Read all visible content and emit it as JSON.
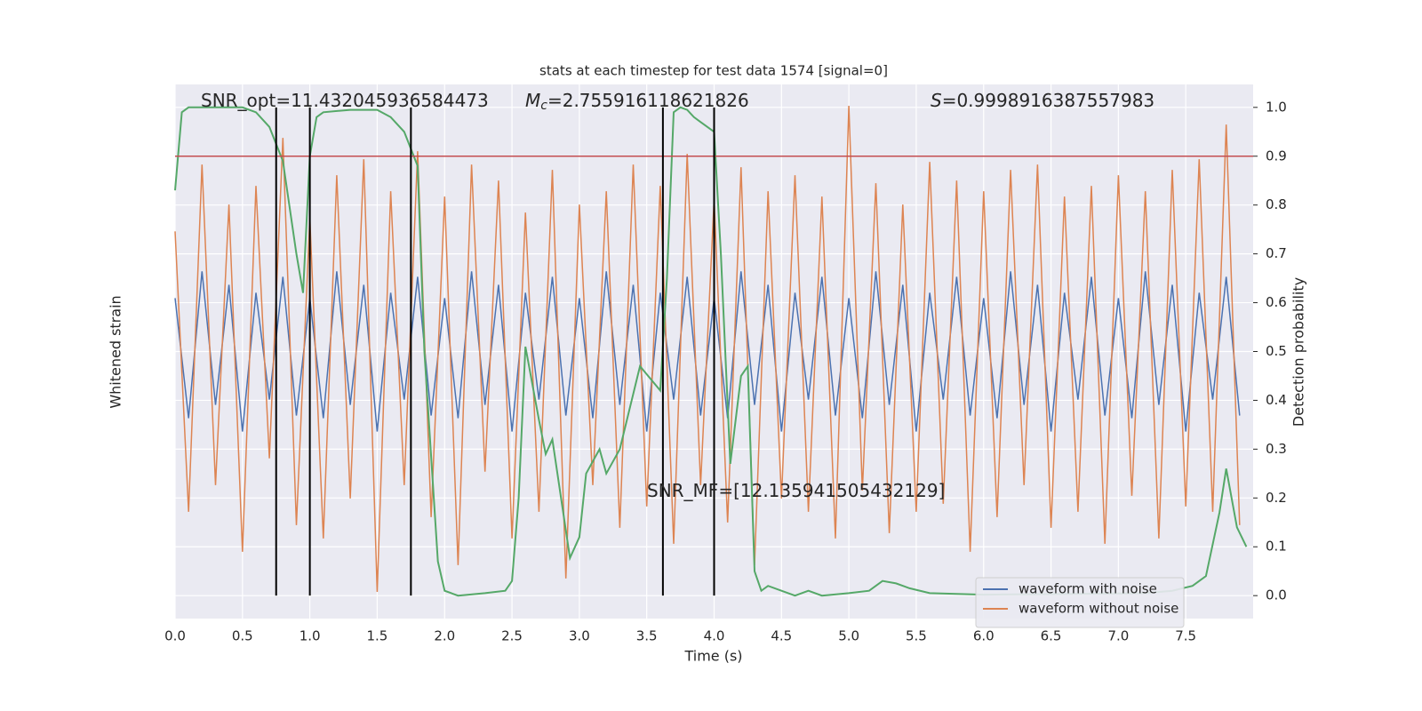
{
  "chart_data": {
    "type": "line",
    "title": "stats at each timestep for test data 1574 [signal=0]",
    "xlabel": "Time (s)",
    "ylabel": "Whitened strain",
    "y2label": "Detection probability",
    "xlim": [
      0,
      8.0
    ],
    "ylim": [
      -1,
      1
    ],
    "y2lim": [
      -0.047,
      1.047
    ],
    "xticks": [
      {
        "value": 0,
        "label": "0.0"
      },
      0.5,
      {
        "value": 1,
        "label": "1.0"
      },
      1.5,
      {
        "value": 2,
        "label": "2.0"
      },
      2.5,
      {
        "value": 3,
        "label": "3.0"
      },
      3.5,
      {
        "value": 4,
        "label": "4.0"
      },
      4.5,
      {
        "value": 5,
        "label": "5.0"
      },
      5.5,
      {
        "value": 6,
        "label": "6.0"
      },
      6.5,
      {
        "value": 7,
        "label": "7.0"
      },
      7.5
    ],
    "y2ticks": [
      {
        "value": 0,
        "label": "0.0"
      },
      0.1,
      0.2,
      0.3,
      0.4,
      0.5,
      0.6,
      0.7,
      0.8,
      0.9,
      {
        "value": 1,
        "label": "1.0"
      }
    ],
    "grid": true,
    "legend": "lower right",
    "x": [
      0.0,
      0.1,
      0.2,
      0.3,
      0.4,
      0.5,
      0.6,
      0.7,
      0.8,
      0.9,
      1.0,
      1.1,
      1.2,
      1.3,
      1.4,
      1.5,
      1.6,
      1.7,
      1.8,
      1.9,
      2.0,
      2.1,
      2.2,
      2.3,
      2.4,
      2.5,
      2.6,
      2.7,
      2.8,
      2.9,
      3.0,
      3.1,
      3.2,
      3.3,
      3.4,
      3.5,
      3.6,
      3.7,
      3.8,
      3.9,
      4.0,
      4.1,
      4.2,
      4.3,
      4.4,
      4.5,
      4.6,
      4.7,
      4.8,
      4.9,
      5.0,
      5.1,
      5.2,
      5.3,
      5.4,
      5.5,
      5.6,
      5.7,
      5.8,
      5.9,
      6.0,
      6.1,
      6.2,
      6.3,
      6.4,
      6.5,
      6.6,
      6.7,
      6.8,
      6.9,
      7.0,
      7.1,
      7.2,
      7.3,
      7.4,
      7.5,
      7.6,
      7.7,
      7.8,
      7.9
    ],
    "series": [
      {
        "name": "waveform with noise",
        "color": "#4c72b0",
        "values": [
          0.2,
          -0.25,
          0.3,
          -0.2,
          0.25,
          -0.3,
          0.22,
          -0.18,
          0.28,
          -0.24,
          0.2,
          -0.25,
          0.3,
          -0.2,
          0.25,
          -0.3,
          0.22,
          -0.18,
          0.28,
          -0.24,
          0.2,
          -0.25,
          0.3,
          -0.2,
          0.25,
          -0.3,
          0.22,
          -0.18,
          0.28,
          -0.24,
          0.2,
          -0.25,
          0.3,
          -0.2,
          0.25,
          -0.3,
          0.22,
          -0.18,
          0.28,
          -0.24,
          0.2,
          -0.25,
          0.3,
          -0.2,
          0.25,
          -0.3,
          0.22,
          -0.18,
          0.28,
          -0.24,
          0.2,
          -0.25,
          0.3,
          -0.2,
          0.25,
          -0.3,
          0.22,
          -0.18,
          0.28,
          -0.24,
          0.2,
          -0.25,
          0.3,
          -0.2,
          0.25,
          -0.3,
          0.22,
          -0.18,
          0.28,
          -0.24,
          0.2,
          -0.25,
          0.3,
          -0.2,
          0.25,
          -0.3,
          0.22,
          -0.18,
          0.28,
          -0.24
        ]
      },
      {
        "name": "waveform without noise",
        "color": "#dd8452",
        "values": [
          0.45,
          -0.6,
          0.7,
          -0.5,
          0.55,
          -0.75,
          0.62,
          -0.4,
          0.8,
          -0.65,
          0.5,
          -0.7,
          0.66,
          -0.55,
          0.72,
          -0.9,
          0.6,
          -0.5,
          0.75,
          -0.62,
          0.58,
          -0.8,
          0.7,
          -0.45,
          0.64,
          -0.7,
          0.52,
          -0.6,
          0.68,
          -0.85,
          0.55,
          -0.5,
          0.6,
          -0.66,
          0.7,
          -0.58,
          0.62,
          -0.72,
          0.74,
          -0.5,
          0.57,
          -0.64,
          0.69,
          -0.8,
          0.6,
          -0.55,
          0.66,
          -0.6,
          0.58,
          -0.7,
          0.92,
          -0.52,
          0.63,
          -0.68,
          0.55,
          -0.6,
          0.71,
          -0.57,
          0.64,
          -0.75,
          0.6,
          -0.62,
          0.68,
          -0.5,
          0.7,
          -0.66,
          0.58,
          -0.6,
          0.62,
          -0.72,
          0.66,
          -0.54,
          0.6,
          -0.7,
          0.68,
          -0.58,
          0.72,
          -0.6,
          0.85,
          -0.65
        ]
      },
      {
        "color": "#55a868",
        "axis": "y2",
        "x": [
          0,
          0.05,
          0.1,
          0.5,
          0.6,
          0.7,
          0.8,
          0.9,
          0.95,
          1.0,
          1.05,
          1.1,
          1.3,
          1.5,
          1.6,
          1.7,
          1.8,
          1.85,
          1.95,
          2.0,
          2.1,
          2.3,
          2.45,
          2.5,
          2.55,
          2.6,
          2.7,
          2.75,
          2.8,
          2.93,
          3.0,
          3.05,
          3.15,
          3.2,
          3.3,
          3.45,
          3.6,
          3.65,
          3.7,
          3.75,
          3.8,
          3.85,
          3.9,
          4.0,
          4.05,
          4.12,
          4.2,
          4.25,
          4.3,
          4.35,
          4.4,
          4.5,
          4.6,
          4.7,
          4.8,
          5.0,
          5.15,
          5.25,
          5.35,
          5.45,
          5.6,
          6.0,
          7.2,
          7.4,
          7.55,
          7.65,
          7.75,
          7.8,
          7.88,
          7.95
        ],
        "values": [
          0.83,
          0.99,
          1.0,
          1.0,
          0.99,
          0.96,
          0.89,
          0.7,
          0.62,
          0.9,
          0.98,
          0.99,
          0.995,
          0.995,
          0.98,
          0.95,
          0.88,
          0.5,
          0.07,
          0.01,
          0.0,
          0.005,
          0.01,
          0.03,
          0.2,
          0.51,
          0.36,
          0.29,
          0.32,
          0.077,
          0.12,
          0.25,
          0.3,
          0.25,
          0.3,
          0.47,
          0.42,
          0.65,
          0.99,
          1.0,
          0.995,
          0.98,
          0.97,
          0.95,
          0.7,
          0.27,
          0.45,
          0.47,
          0.05,
          0.01,
          0.02,
          0.01,
          0.0,
          0.01,
          0.0,
          0.005,
          0.01,
          0.03,
          0.025,
          0.015,
          0.005,
          0.002,
          0.005,
          0.01,
          0.02,
          0.04,
          0.17,
          0.26,
          0.14,
          0.1
        ]
      }
    ],
    "hline": {
      "value": 0.9,
      "color": "#c44e52",
      "axis": "y2"
    },
    "vlines": [
      0.75,
      1.0,
      1.75,
      3.62,
      4.0
    ],
    "annotations": [
      {
        "text": "SNR_opt=11.432045936584473"
      },
      {
        "symbol": "M",
        "subscript": "c",
        "text": "=2.755916118621826"
      },
      {
        "symbol": "S",
        "text": "=0.9998916387557983"
      },
      {
        "text": "SNR_MF=[12.135941505432129]"
      }
    ]
  }
}
